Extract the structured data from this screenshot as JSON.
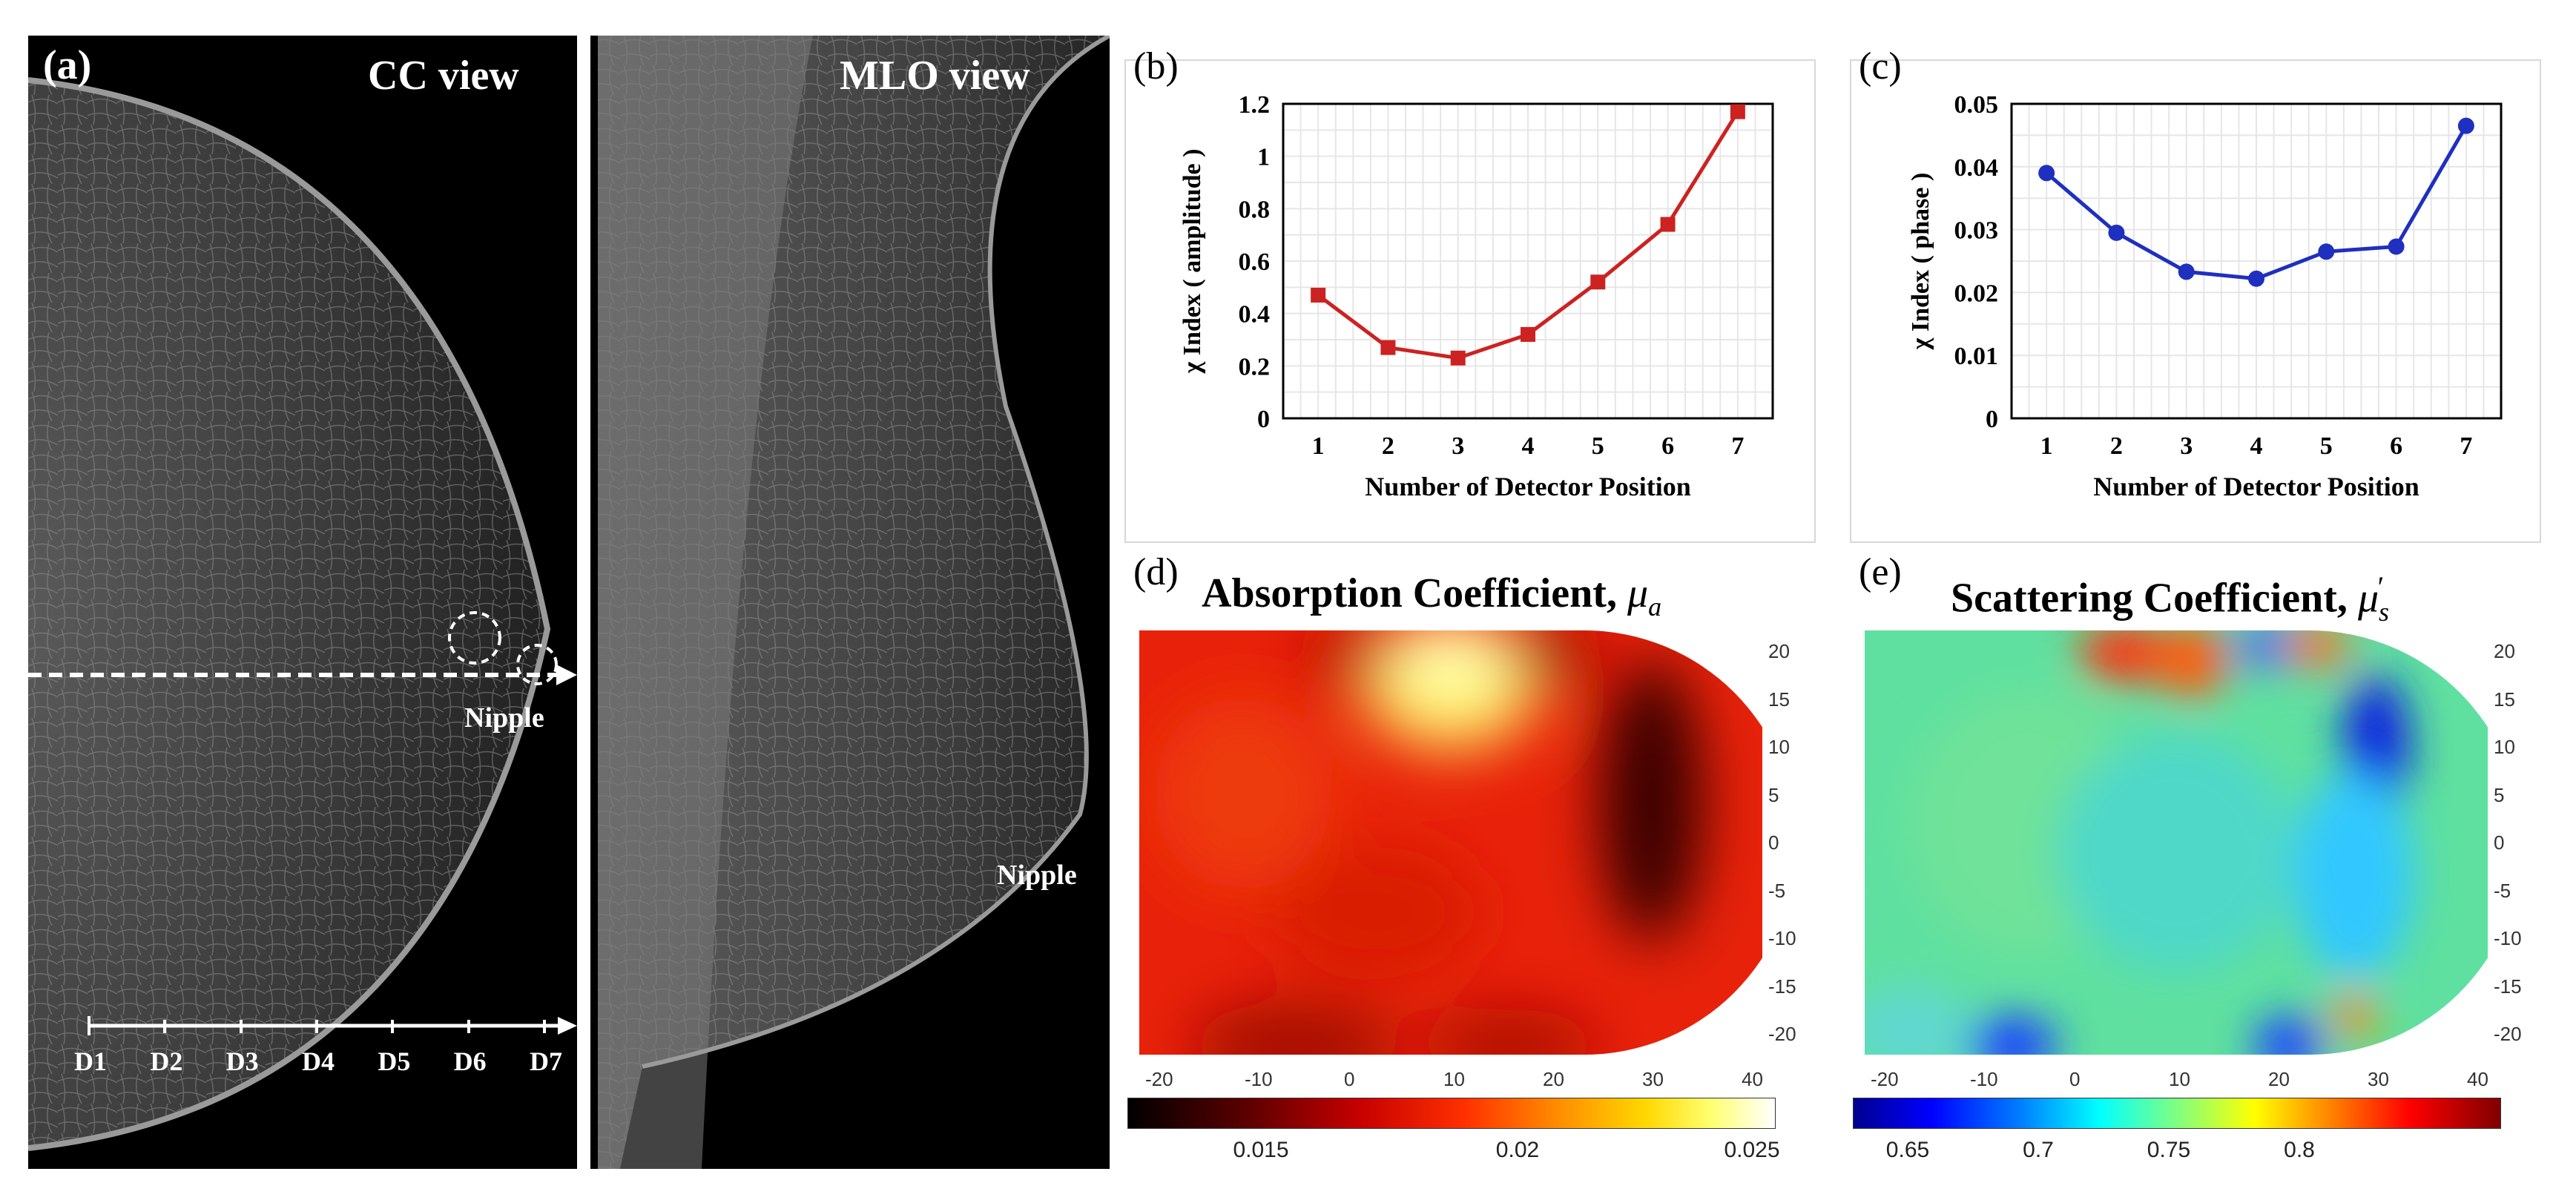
{
  "panel_a": {
    "letter": "(a)",
    "cc_title": "CC view",
    "mlo_title": "MLO view",
    "nipple_label": "Nipple",
    "detectors": [
      "D1",
      "D2",
      "D3",
      "D4",
      "D5",
      "D6",
      "D7"
    ]
  },
  "chart_data": [
    {
      "panel": "(b)",
      "type": "line",
      "x": [
        1,
        2,
        3,
        4,
        5,
        6,
        7
      ],
      "series": [
        {
          "values": [
            0.47,
            0.27,
            0.23,
            0.32,
            0.52,
            0.74,
            1.17
          ],
          "color": "#cc2222",
          "marker": "square"
        }
      ],
      "xlabel": "Number of Detector Position",
      "ylabel": "χ Index ( amplitude )",
      "xlim": [
        0.5,
        7.5
      ],
      "ylim": [
        0,
        1.2
      ],
      "yticks": [
        0,
        0.2,
        0.4,
        0.6,
        0.8,
        1,
        1.2
      ],
      "ytick_labels": [
        "0",
        "0.2",
        "0.4",
        "0.6",
        "0.8",
        "1",
        "1.2"
      ],
      "grid": true
    },
    {
      "panel": "(c)",
      "type": "line",
      "x": [
        1,
        2,
        3,
        4,
        5,
        6,
        7
      ],
      "series": [
        {
          "values": [
            0.039,
            0.0295,
            0.0233,
            0.0222,
            0.0265,
            0.0273,
            0.0465
          ],
          "color": "#1f2fbf",
          "marker": "circle"
        }
      ],
      "xlabel": "Number of Detector Position",
      "ylabel": "χ Index ( phase )",
      "xlim": [
        0.5,
        7.5
      ],
      "ylim": [
        0,
        0.05
      ],
      "yticks": [
        0,
        0.01,
        0.02,
        0.03,
        0.04,
        0.05
      ],
      "ytick_labels": [
        "0",
        "0.01",
        "0.02",
        "0.03",
        "0.04",
        "0.05"
      ],
      "grid": true
    },
    {
      "panel": "(d)",
      "type": "heatmap",
      "title": "Absorption Coefficient, ",
      "symbol": "μ",
      "subscript": "a",
      "xticks": [
        "-20",
        "-10",
        "0",
        "10",
        "20",
        "30",
        "40"
      ],
      "yticks": [
        "20",
        "15",
        "10",
        "5",
        "0",
        "-5",
        "-10",
        "-15",
        "-20"
      ],
      "colorbar_ticks": [
        "0.015",
        "0.02",
        "0.025"
      ],
      "colormap": "hot"
    },
    {
      "panel": "(e)",
      "type": "heatmap",
      "title": "Scattering Coefficient, ",
      "symbol": "μ",
      "subscript": "s",
      "superscript": "′",
      "xticks": [
        "-20",
        "-10",
        "0",
        "10",
        "20",
        "30",
        "40"
      ],
      "yticks": [
        "20",
        "15",
        "10",
        "5",
        "0",
        "-5",
        "-10",
        "-15",
        "-20"
      ],
      "colorbar_ticks": [
        "0.65",
        "0.7",
        "0.75",
        "0.8"
      ],
      "colormap": "jet"
    }
  ]
}
